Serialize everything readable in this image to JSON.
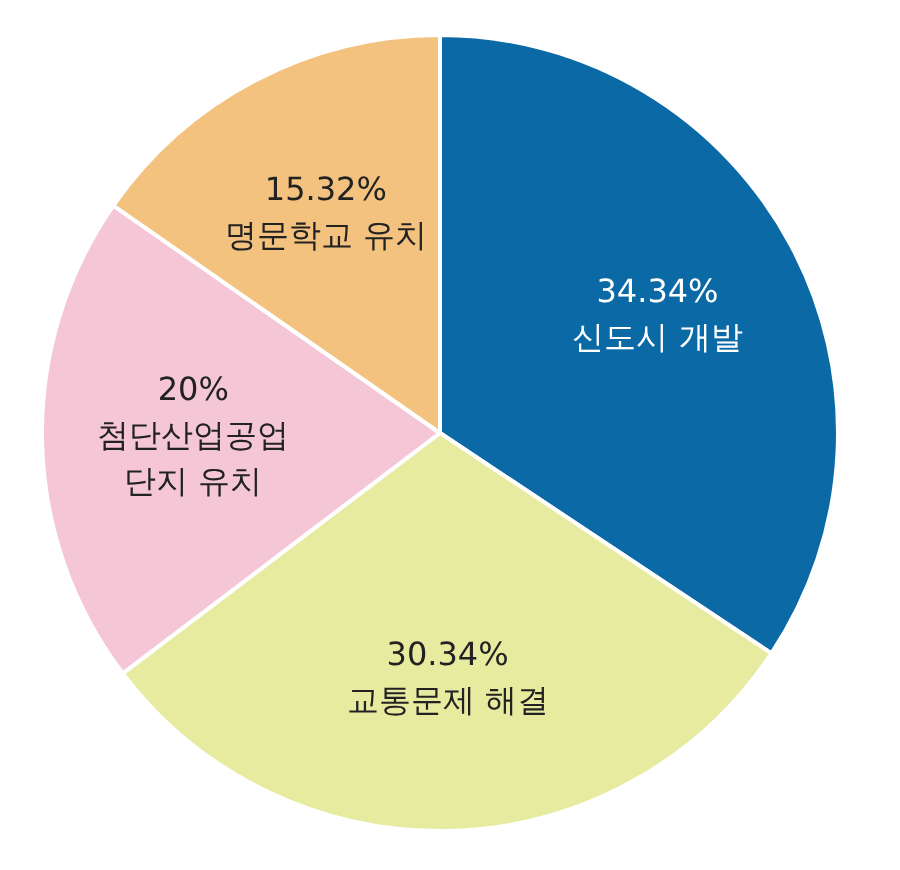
{
  "chart_data": {
    "type": "pie",
    "categories": [
      "신도시 개발",
      "교통문제 해결",
      "첨단산업공업\n단지 유치",
      "명문학교 유치"
    ],
    "values": [
      34.34,
      30.34,
      20,
      15.32
    ],
    "value_labels": [
      "34.34%",
      "30.34%",
      "20%",
      "15.32%"
    ],
    "colors": [
      "#0b6aa6",
      "#e6eba0",
      "#f5c6d6",
      "#f3c27e"
    ],
    "legend": false
  }
}
